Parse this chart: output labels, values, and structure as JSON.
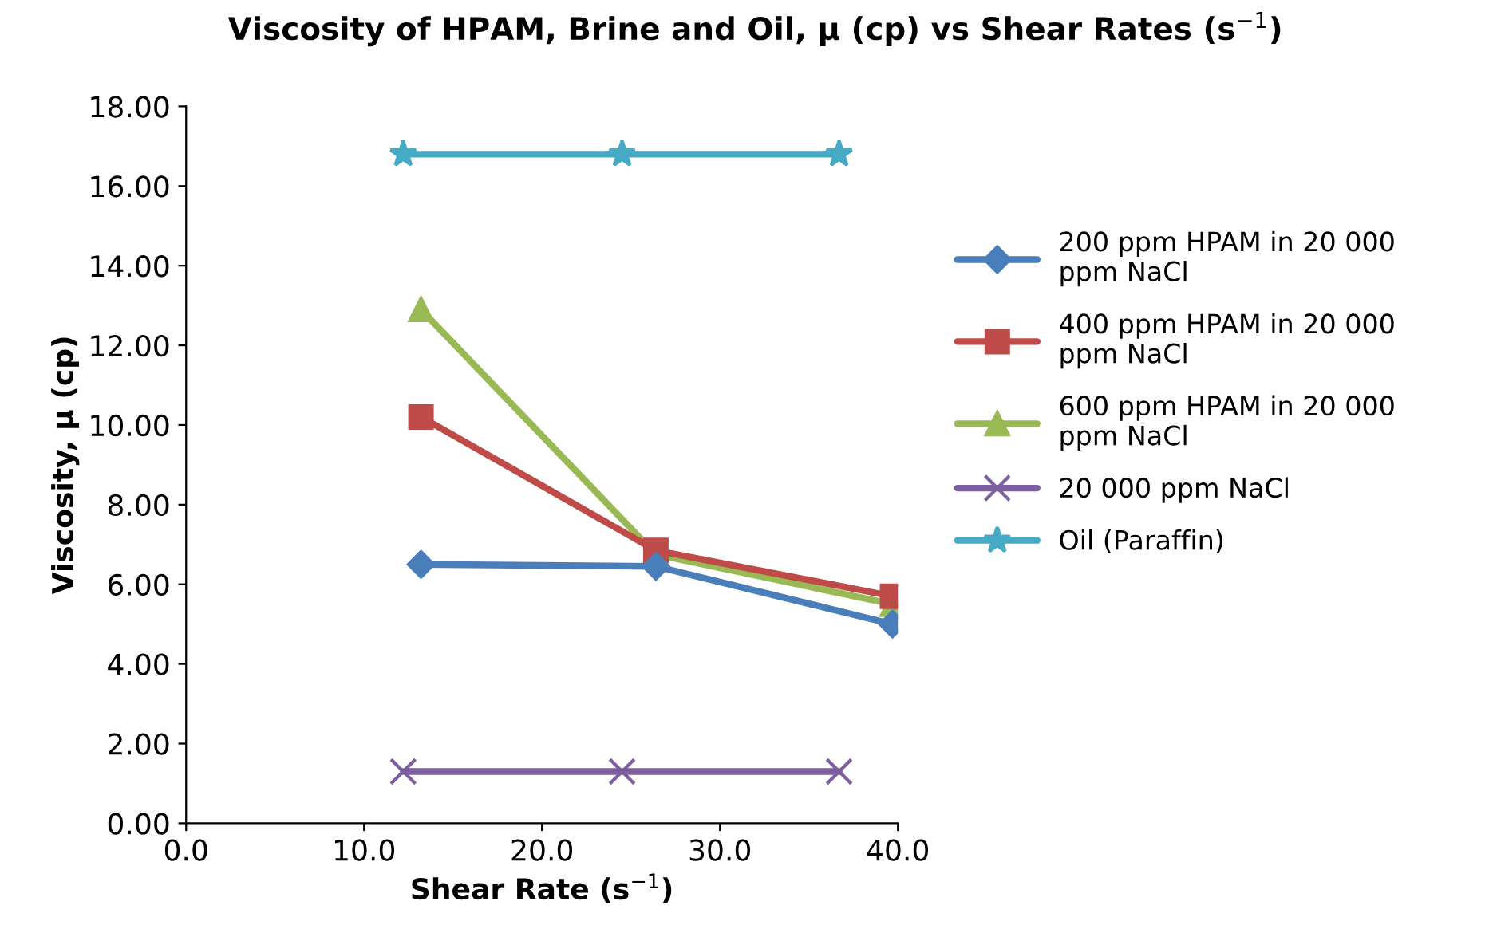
{
  "chart_data": {
    "type": "line",
    "title": "Viscosity of HPAM, Brine and Oil, μ (cp) vs Shear Rates (s$^{−1}$)",
    "xlabel": "Shear Rate (s$^{−1}$)",
    "ylabel": "Viscosity, μ (cp)",
    "xlim": [
      0,
      40
    ],
    "xticks": [
      {
        "value": 0,
        "label": "0.0"
      },
      {
        "value": 10,
        "label": "10.0"
      },
      {
        "value": 20,
        "label": "20.0"
      },
      {
        "value": 30,
        "label": "30.0"
      },
      {
        "value": 40,
        "label": "40.0"
      }
    ],
    "ylim": [
      0,
      18
    ],
    "yticks": [
      {
        "value": 0,
        "label": "0.00"
      },
      {
        "value": 2,
        "label": "2.00"
      },
      {
        "value": 4,
        "label": "4.00"
      },
      {
        "value": 6,
        "label": "6.00"
      },
      {
        "value": 8,
        "label": "8.00"
      },
      {
        "value": 10,
        "label": "10.00"
      },
      {
        "value": 12,
        "label": "12.00"
      },
      {
        "value": 14,
        "label": "14.00"
      },
      {
        "value": 16,
        "label": "16.00"
      },
      {
        "value": 18,
        "label": "18.00"
      }
    ],
    "grid": false,
    "legend": "right",
    "line_style": "solid",
    "series": [
      {
        "name": "200 ppm HPAM in 20 000\nppm NaCl",
        "color": "#4a7ebb",
        "marker": "diamond",
        "x": [
          13.2,
          26.4,
          39.7
        ],
        "values": [
          6.5,
          6.45,
          5.0
        ]
      },
      {
        "name": "400 ppm HPAM in 20 000\nppm NaCl",
        "color": "#be4b48",
        "marker": "square",
        "x": [
          13.2,
          26.4,
          39.7
        ],
        "values": [
          10.2,
          6.85,
          5.7
        ]
      },
      {
        "name": "600 ppm HPAM in 20 000\nppm NaCl",
        "color": "#98b954",
        "marker": "triangle",
        "x": [
          13.2,
          26.4,
          39.7
        ],
        "values": [
          12.9,
          6.75,
          5.5
        ]
      },
      {
        "name": "20 000 ppm NaCl",
        "color": "#7d5fa0",
        "marker": "cross",
        "x": [
          12.2,
          24.5,
          36.7
        ],
        "values": [
          1.3,
          1.3,
          1.3
        ]
      },
      {
        "name": "Oil (Paraffin)",
        "color": "#46aac5",
        "marker": "star",
        "x": [
          12.2,
          24.5,
          36.7
        ],
        "values": [
          16.8,
          16.8,
          16.8
        ]
      }
    ]
  }
}
